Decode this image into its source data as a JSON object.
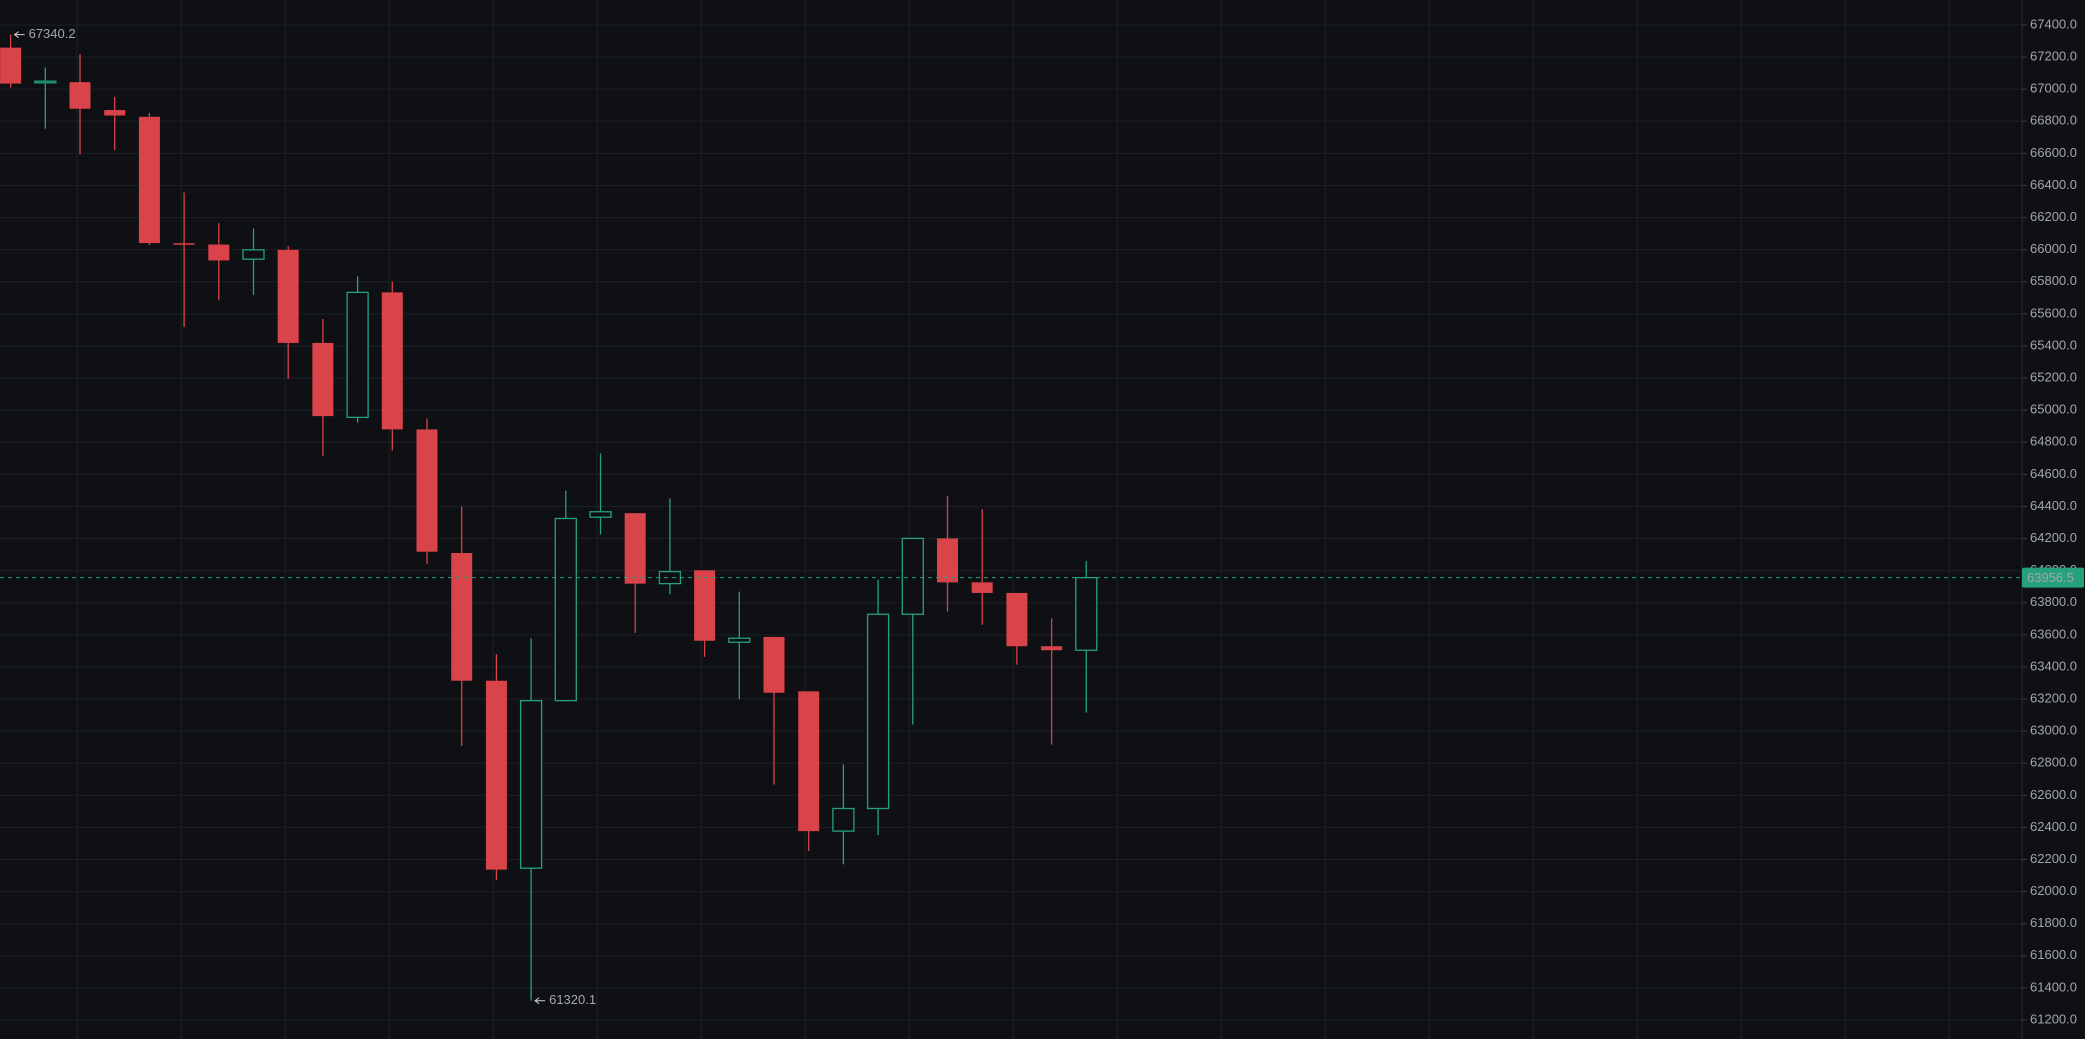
{
  "chart_data": {
    "type": "candlestick",
    "up_color": "#26a17b",
    "down_color": "#d9434a",
    "open": [
      67259,
      67040,
      67044,
      66870,
      66828,
      66040,
      66032,
      65941,
      65999,
      65419,
      64955,
      65734,
      64880,
      64110,
      63314,
      62146,
      63190,
      64333,
      64358,
      63919,
      64002,
      63554,
      63587,
      63248,
      62377,
      62518,
      63728,
      64201,
      63927,
      63861,
      63529,
      63504
    ],
    "high": [
      67340.2,
      67135,
      67218,
      66952,
      66853,
      66356,
      66165,
      66132,
      66024,
      65568,
      65834,
      65800,
      64947,
      64400,
      63480,
      63579,
      64499,
      64731,
      64358,
      64449,
      64002,
      63869,
      63587,
      63248,
      62792,
      63944,
      64201,
      64466,
      64383,
      63861,
      63703,
      64060
    ],
    "low": [
      67010,
      66754,
      66596,
      66621,
      66030,
      65519,
      65684,
      65718,
      65195,
      64715,
      64922,
      64748,
      64043,
      62908,
      62071,
      61320.1,
      63190,
      64226,
      63612,
      63853,
      63463,
      63198,
      62667,
      62253,
      62170,
      62353,
      63041,
      63745,
      63662,
      63414,
      62916,
      63115
    ],
    "close": [
      67035,
      67050,
      66878,
      66836,
      66041,
      66035,
      65933,
      65999,
      65419,
      64963,
      65734,
      64880,
      64118,
      63314,
      62137,
      63190,
      64325,
      64367,
      63919,
      63994,
      63563,
      63579,
      63239,
      62377,
      62518,
      63728,
      64201,
      63927,
      63861,
      63529,
      63504,
      63956.5
    ],
    "ylim": [
      61200,
      67400
    ],
    "yticks": [
      {
        "value": 67400,
        "label": "67400.0"
      },
      {
        "value": 67200,
        "label": "67200.0"
      },
      {
        "value": 67000,
        "label": "67000.0"
      },
      {
        "value": 66800,
        "label": "66800.0"
      },
      {
        "value": 66600,
        "label": "66600.0"
      },
      {
        "value": 66400,
        "label": "66400.0"
      },
      {
        "value": 66200,
        "label": "66200.0"
      },
      {
        "value": 66000,
        "label": "66000.0"
      },
      {
        "value": 65800,
        "label": "65800.0"
      },
      {
        "value": 65600,
        "label": "65600.0"
      },
      {
        "value": 65400,
        "label": "65400.0"
      },
      {
        "value": 65200,
        "label": "65200.0"
      },
      {
        "value": 65000,
        "label": "65000.0"
      },
      {
        "value": 64800,
        "label": "64800.0"
      },
      {
        "value": 64600,
        "label": "64600.0"
      },
      {
        "value": 64400,
        "label": "64400.0"
      },
      {
        "value": 64200,
        "label": "64200.0"
      },
      {
        "value": 64000,
        "label": "64000.0"
      },
      {
        "value": 63800,
        "label": "63800.0"
      },
      {
        "value": 63600,
        "label": "63600.0"
      },
      {
        "value": 63400,
        "label": "63400.0"
      },
      {
        "value": 63200,
        "label": "63200.0"
      },
      {
        "value": 63000,
        "label": "63000.0"
      },
      {
        "value": 62800,
        "label": "62800.0"
      },
      {
        "value": 62600,
        "label": "62600.0"
      },
      {
        "value": 62400,
        "label": "62400.0"
      },
      {
        "value": 62200,
        "label": "62200.0"
      },
      {
        "value": 62000,
        "label": "62000.0"
      },
      {
        "value": 61800,
        "label": "61800.0"
      },
      {
        "value": 61600,
        "label": "61600.0"
      },
      {
        "value": 61400,
        "label": "61400.0"
      },
      {
        "value": 61200,
        "label": "61200.0"
      }
    ],
    "grid": true
  }
}
